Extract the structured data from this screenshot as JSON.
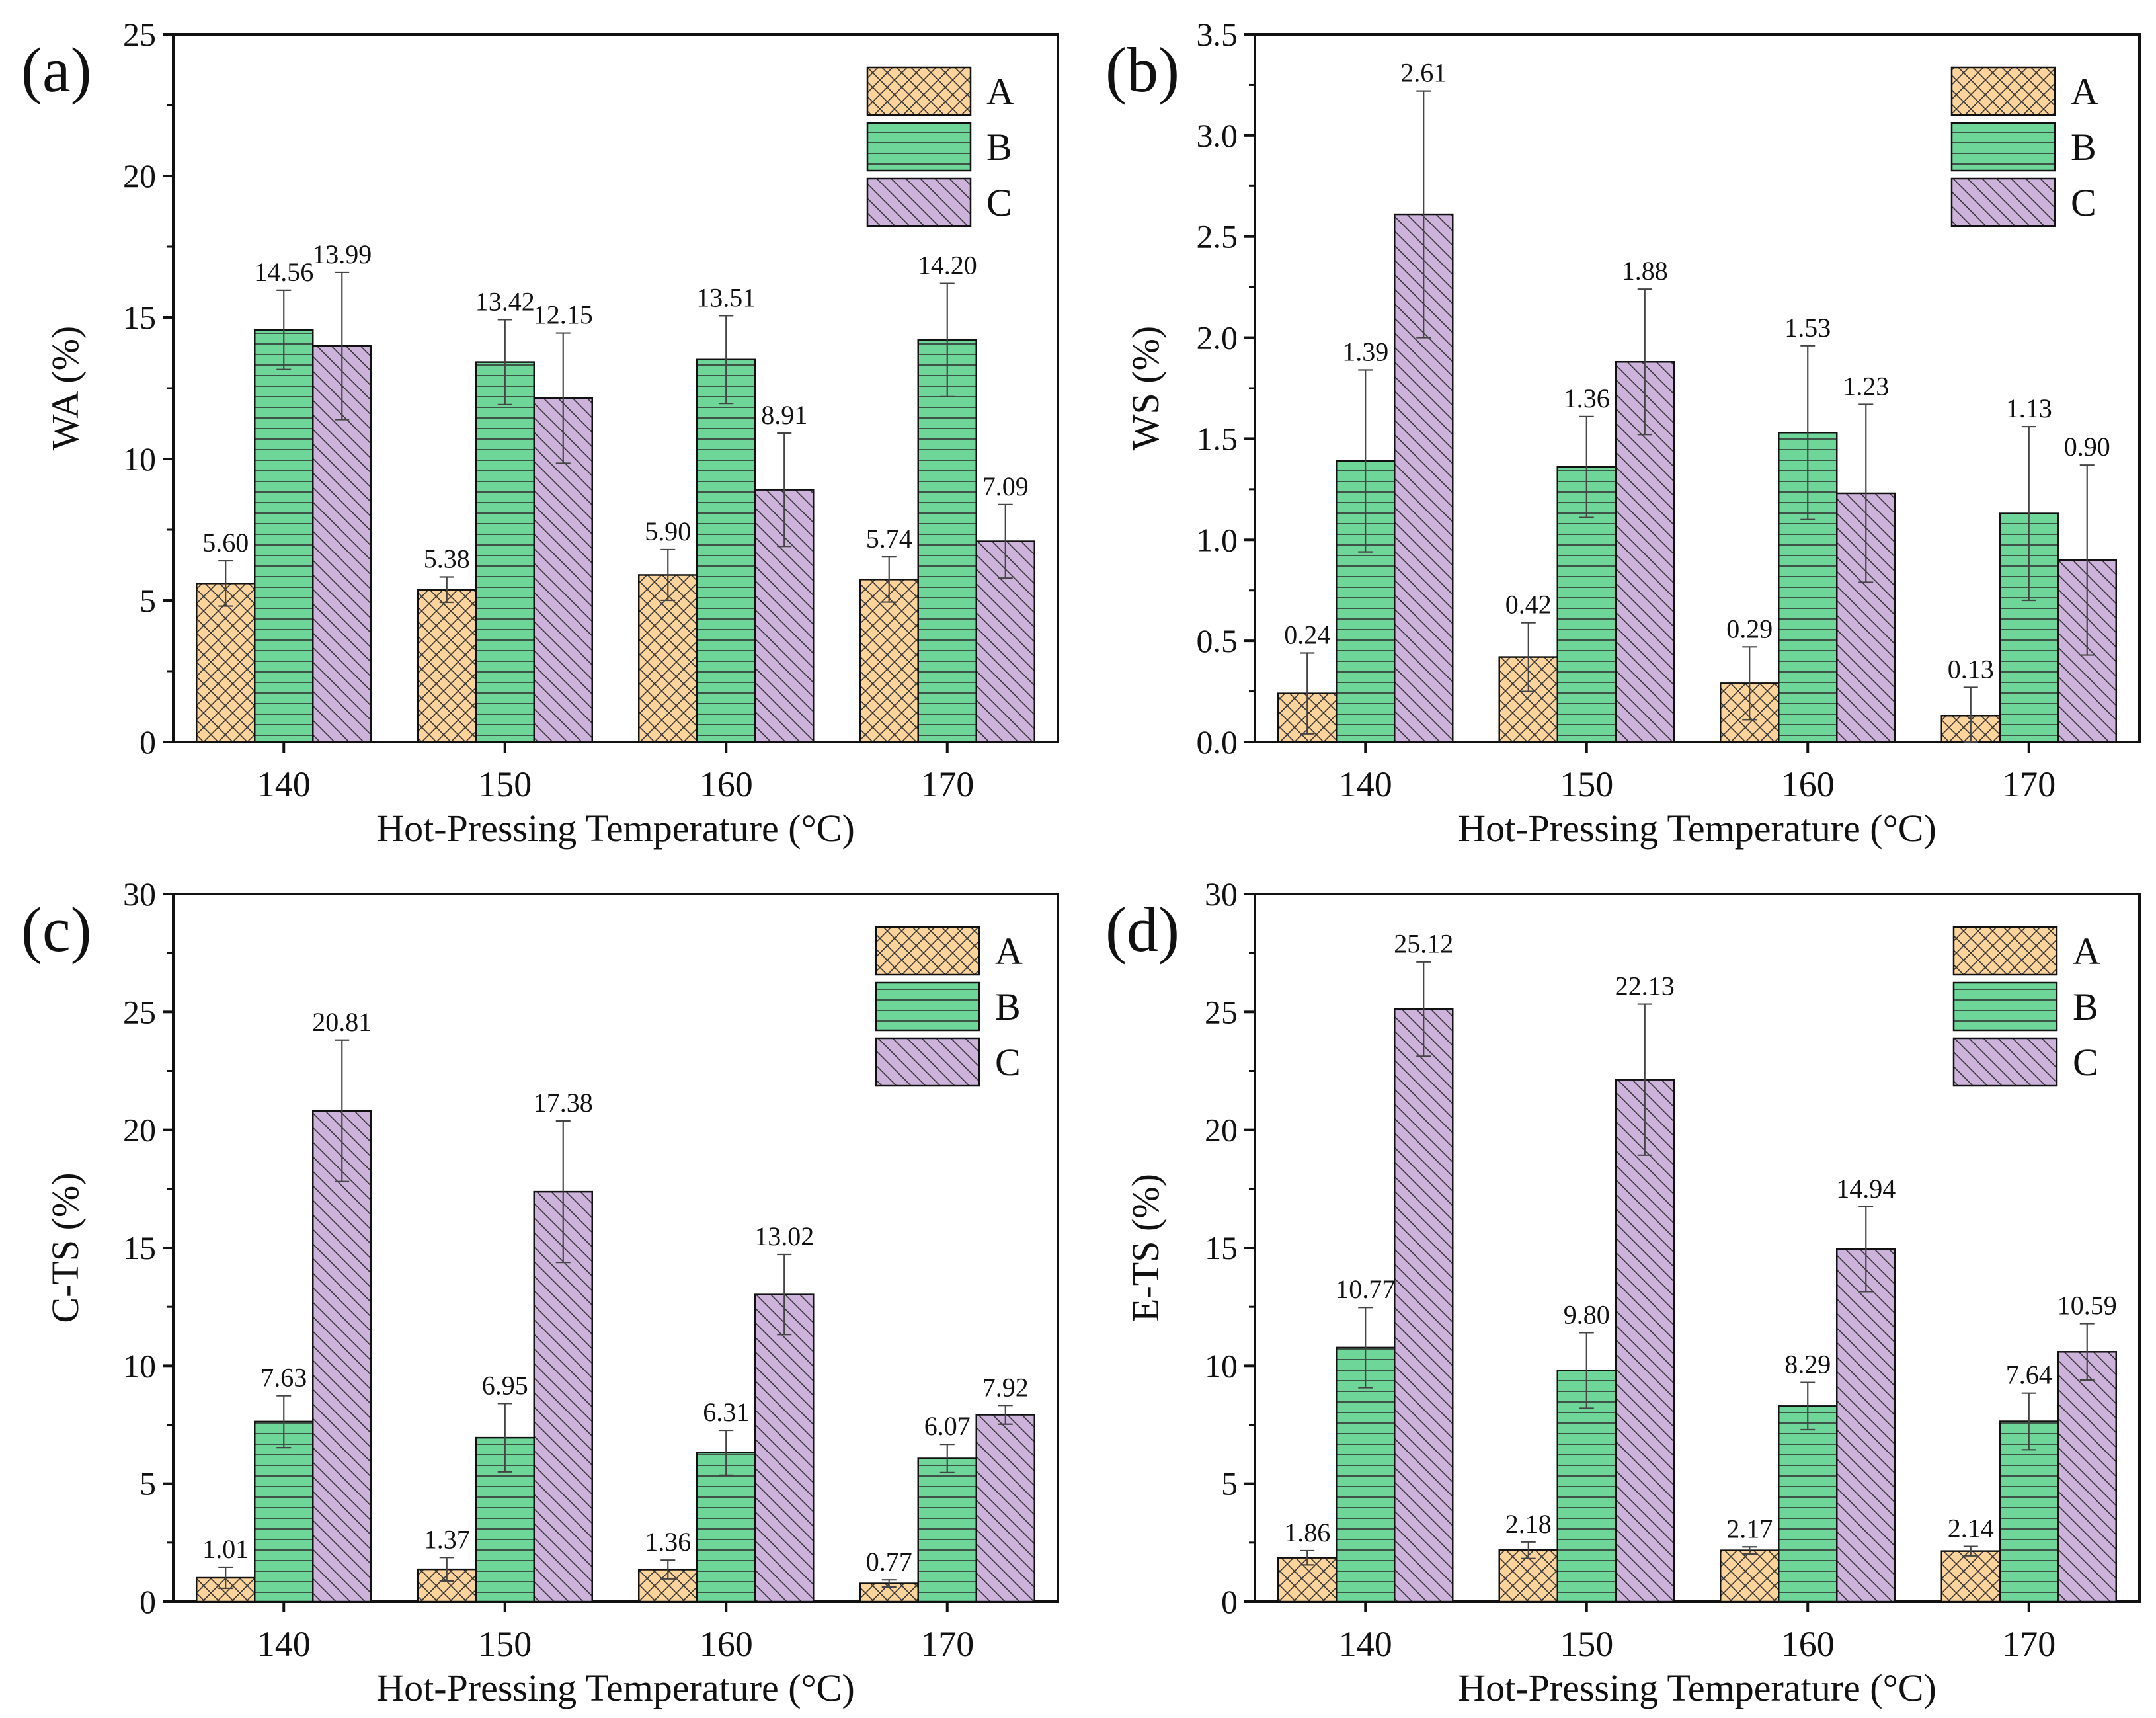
{
  "figure": {
    "legend_position": "top-right",
    "grid": false,
    "colors": {
      "A": "#fdd39c",
      "B": "#6fd69a",
      "C": "#cdb3dc",
      "axis": "#111111",
      "hatch": "#333333"
    },
    "patterns": {
      "A": "crosshatch",
      "B": "horizontal-lines",
      "C": "diagonal-lines"
    }
  },
  "chart_data": [
    {
      "type": "bar",
      "panel_label": "(a)",
      "xlabel": "Hot-Pressing Temperature (°C)",
      "ylabel": "WA (%)",
      "ylim": [
        0,
        25
      ],
      "yticks": [
        "0",
        "5",
        "10",
        "15",
        "20",
        "25"
      ],
      "categories": [
        "140",
        "150",
        "160",
        "170"
      ],
      "series": [
        {
          "name": "A",
          "values": [
            5.6,
            5.38,
            5.9,
            5.74
          ],
          "errors": [
            0.8,
            0.45,
            0.9,
            0.8
          ],
          "labels": [
            "5.60",
            "5.38",
            "5.90",
            "5.74"
          ]
        },
        {
          "name": "B",
          "values": [
            14.56,
            13.42,
            13.51,
            14.2
          ],
          "errors": [
            1.4,
            1.5,
            1.55,
            2.0
          ],
          "labels": [
            "14.56",
            "13.42",
            "13.51",
            "14.20"
          ]
        },
        {
          "name": "C",
          "values": [
            13.99,
            12.15,
            8.91,
            7.09
          ],
          "errors": [
            2.6,
            2.3,
            2.0,
            1.3
          ],
          "labels": [
            "13.99",
            "12.15",
            "8.91",
            "7.09"
          ]
        }
      ]
    },
    {
      "type": "bar",
      "panel_label": "(b)",
      "xlabel": "Hot-Pressing Temperature (°C)",
      "ylabel": "WS (%)",
      "ylim": [
        0,
        3.5
      ],
      "yticks": [
        "0.0",
        "0.5",
        "1.0",
        "1.5",
        "2.0",
        "2.5",
        "3.0",
        "3.5"
      ],
      "categories": [
        "140",
        "150",
        "160",
        "170"
      ],
      "series": [
        {
          "name": "A",
          "values": [
            0.24,
            0.42,
            0.29,
            0.13
          ],
          "errors": [
            0.2,
            0.17,
            0.18,
            0.14
          ],
          "labels": [
            "0.24",
            "0.42",
            "0.29",
            "0.13"
          ]
        },
        {
          "name": "B",
          "values": [
            1.39,
            1.36,
            1.53,
            1.13
          ],
          "errors": [
            0.45,
            0.25,
            0.43,
            0.43
          ],
          "labels": [
            "1.39",
            "1.36",
            "1.53",
            "1.13"
          ]
        },
        {
          "name": "C",
          "values": [
            2.61,
            1.88,
            1.23,
            0.9
          ],
          "errors": [
            0.61,
            0.36,
            0.44,
            0.47
          ],
          "labels": [
            "2.61",
            "1.88",
            "1.23",
            "0.90"
          ]
        }
      ]
    },
    {
      "type": "bar",
      "panel_label": "(c)",
      "xlabel": "Hot-Pressing Temperature (°C)",
      "ylabel": "C-TS (%)",
      "ylim": [
        0,
        30
      ],
      "yticks": [
        "0",
        "5",
        "10",
        "15",
        "20",
        "25",
        "30"
      ],
      "categories": [
        "140",
        "150",
        "160",
        "170"
      ],
      "series": [
        {
          "name": "A",
          "values": [
            1.01,
            1.37,
            1.36,
            0.77
          ],
          "errors": [
            0.45,
            0.5,
            0.4,
            0.15
          ],
          "labels": [
            "1.01",
            "1.37",
            "1.36",
            "0.77"
          ]
        },
        {
          "name": "B",
          "values": [
            7.63,
            6.95,
            6.31,
            6.07
          ],
          "errors": [
            1.1,
            1.45,
            0.95,
            0.6
          ],
          "labels": [
            "7.63",
            "6.95",
            "6.31",
            "6.07"
          ]
        },
        {
          "name": "C",
          "values": [
            20.81,
            17.38,
            13.02,
            7.92
          ],
          "errors": [
            3.0,
            3.0,
            1.7,
            0.4
          ],
          "labels": [
            "20.81",
            "17.38",
            "13.02",
            "7.92"
          ]
        }
      ]
    },
    {
      "type": "bar",
      "panel_label": "(d)",
      "xlabel": "Hot-Pressing Temperature (°C)",
      "ylabel": "E-TS (%)",
      "ylim": [
        0,
        30
      ],
      "yticks": [
        "0",
        "5",
        "10",
        "15",
        "20",
        "25",
        "30"
      ],
      "categories": [
        "140",
        "150",
        "160",
        "170"
      ],
      "series": [
        {
          "name": "A",
          "values": [
            1.86,
            2.18,
            2.17,
            2.14
          ],
          "errors": [
            0.3,
            0.35,
            0.15,
            0.2
          ],
          "labels": [
            "1.86",
            "2.18",
            "2.17",
            "2.14"
          ]
        },
        {
          "name": "B",
          "values": [
            10.77,
            9.8,
            8.29,
            7.64
          ],
          "errors": [
            1.7,
            1.6,
            1.0,
            1.2
          ],
          "labels": [
            "10.77",
            "9.80",
            "8.29",
            "7.64"
          ]
        },
        {
          "name": "C",
          "values": [
            25.12,
            22.13,
            14.94,
            10.59
          ],
          "errors": [
            2.0,
            3.2,
            1.8,
            1.2
          ],
          "labels": [
            "25.12",
            "22.13",
            "14.94",
            "10.59"
          ]
        }
      ]
    }
  ]
}
